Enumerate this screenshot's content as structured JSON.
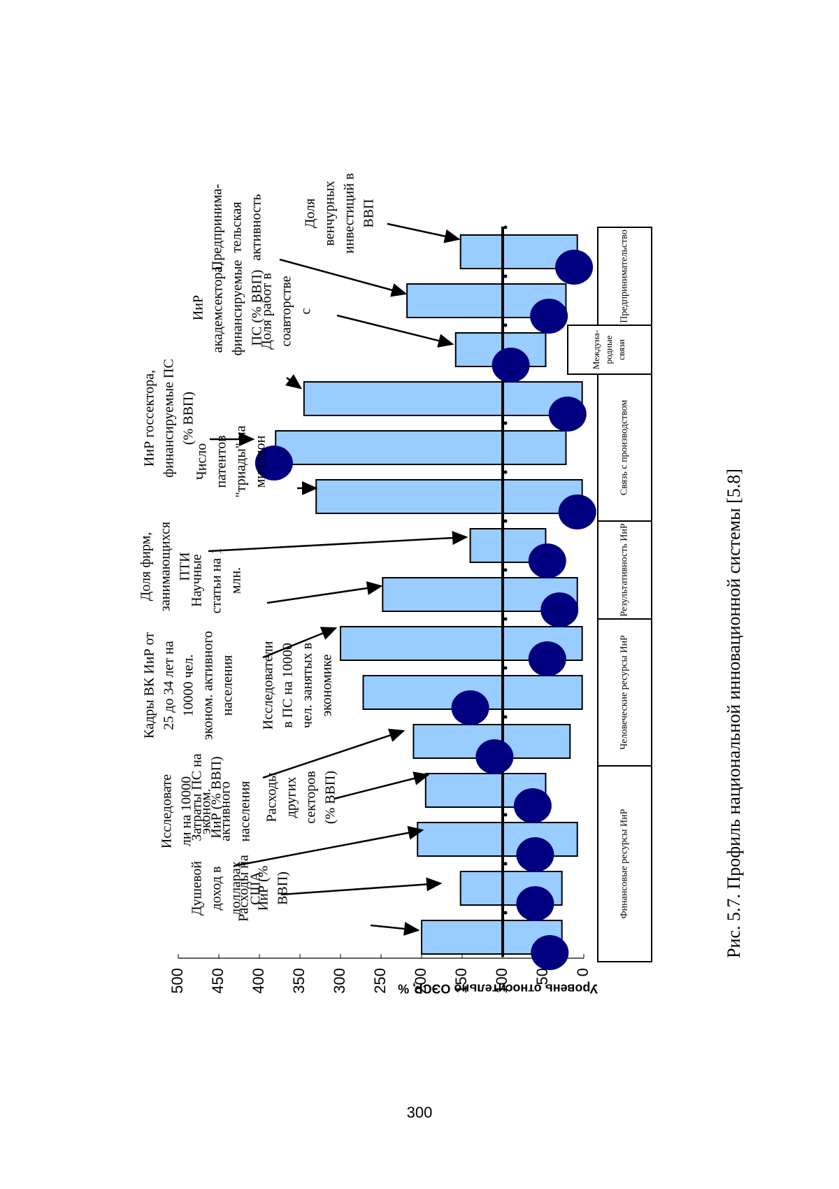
{
  "caption": "Рис. 5.7. Профиль национальной инновационной системы [5.8]",
  "page_number": "300",
  "colors": {
    "bar_fill": "#99ccff",
    "marker_fill": "#000080",
    "stroke": "#000000"
  },
  "chart_data": {
    "type": "bar",
    "orientation": "rotated-90-ccw",
    "ylabel": "Уровень относительно ОЭСР, %",
    "ylim": [
      0,
      500
    ],
    "ticks": [
      "0",
      "50",
      "100",
      "150",
      "200",
      "250",
      "300",
      "350",
      "400",
      "450",
      "500"
    ],
    "reference_value": 100,
    "categories": [
      "Душевой доход в долларах США",
      "Расходы на ИиР (% ВВП)",
      "Затраты ПС на ИиР (% ВВП)",
      "Расходы других секторов (% ВВП)",
      "Исследователи на 10000 эконом. активного населения",
      "Исследователи в ПС на 10000 чел. занятых в экономике",
      "Кадры ВК ИиР от 25 до 34 лет на 10000 чел. эконом. активного населения",
      "Научные статьи на 1 млн.",
      "Доля фирм, занимающихся ПТИ",
      "Число патентов \"триады\" на миллион",
      "ИиР госсектора, финансируемые ПС (% ВВП)",
      "ИиР академсектора, финансируемые ПС (% ВВП)",
      "Доля работ в соавторстве с",
      "Предпринима-тельская активность",
      "Доля венчурных инвестиций в ВВП"
    ],
    "series": [
      {
        "role": "bars",
        "low": [
          27,
          27,
          8,
          47,
          17,
          2,
          2,
          8,
          47,
          2,
          22,
          2,
          47,
          22,
          8
        ],
        "high": [
          200,
          152,
          205,
          195,
          210,
          272,
          300,
          248,
          140,
          330,
          380,
          345,
          158,
          218,
          152
        ]
      },
      {
        "role": "markers",
        "values": [
          42,
          60,
          60,
          63,
          110,
          140,
          45,
          30,
          45,
          8,
          382,
          20,
          90,
          43,
          12
        ]
      }
    ],
    "annotations": [
      {
        "lines": [
          "Душевой",
          "доход в",
          "долларах",
          "США"
        ],
        "target": 0
      },
      {
        "lines": [
          "Расходы на",
          "ИиР (%",
          "ВВП)"
        ],
        "target": 1
      },
      {
        "lines": [
          "Затраты ПС на",
          "ИиР (% ВВП)"
        ],
        "target": 2
      },
      {
        "lines": [
          "Исследовате",
          "ли на 10000",
          "эконом.",
          "активного",
          "населения"
        ],
        "target": 4
      },
      {
        "lines": [
          "Расходы",
          "других",
          "секторов",
          "(% ВВП)"
        ],
        "target": 3
      },
      {
        "lines": [
          "Кадры ВК ИиР от",
          "25 до 34 лет на",
          "10000 чел.",
          "эконом. активного",
          "населения"
        ],
        "target": 6
      },
      {
        "lines": [
          "Исследователи",
          "в ПС на 10000",
          "чел. занятых в",
          "экономике"
        ],
        "target": null
      },
      {
        "lines": [
          "Научные",
          "статьи на 1",
          "млн."
        ],
        "target": 7
      },
      {
        "lines": [
          "Доля фирм,",
          "занимающихся",
          "ПТИ"
        ],
        "target": 8
      },
      {
        "lines": [
          "Число",
          "патентов",
          "\"триады\" на",
          "миллион"
        ],
        "target": 9
      },
      {
        "lines": [
          "ИиР госсектора,",
          "финансируемые ПС",
          "(% ВВП)"
        ],
        "target": 10
      },
      {
        "lines": [
          "ИиР",
          "академсектора,",
          "финансируемые",
          "ПС (% ВВП)"
        ],
        "target": 11
      },
      {
        "lines": [
          "Доля работ в",
          "соавторстве",
          "с"
        ],
        "target": 12
      },
      {
        "lines": [
          "Предпринима-",
          "тельская",
          "активность"
        ],
        "target": 13
      },
      {
        "lines": [
          "Доля",
          "венчурных",
          "инвестиций в",
          "ВВП"
        ],
        "target": 14
      }
    ],
    "groups": [
      {
        "label": "Финансовые ресурсы ИиР",
        "from": 0,
        "to": 3
      },
      {
        "label": "Человеческие ресурсы ИиР",
        "from": 4,
        "to": 6
      },
      {
        "label": "Результативность ИиР",
        "from": 7,
        "to": 8
      },
      {
        "label": "Связь с производством",
        "from": 9,
        "to": 11
      },
      {
        "label": "Междуна-родные связи",
        "from": 12,
        "to": 12
      },
      {
        "label": "Предпринимательство",
        "from": 13,
        "to": 14
      }
    ]
  }
}
